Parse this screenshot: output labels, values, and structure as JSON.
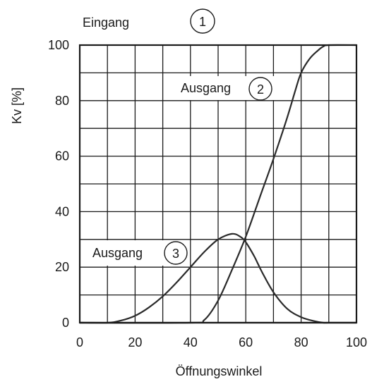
{
  "chart_data": {
    "type": "line",
    "xlabel": "Öffnungswinkel",
    "ylabel": "Kv [%]",
    "xlim": [
      0,
      100
    ],
    "ylim": [
      0,
      100
    ],
    "x_ticks": [
      "0",
      "20",
      "40",
      "60",
      "80",
      "100"
    ],
    "y_ticks": [
      "0",
      "20",
      "40",
      "60",
      "80",
      "100"
    ],
    "grid": true,
    "annotations": [
      {
        "text": "Eingang",
        "marker": "1"
      },
      {
        "text": "Ausgang",
        "marker": "2"
      },
      {
        "text": "Ausgang",
        "marker": "3"
      }
    ],
    "series": [
      {
        "x": [
          0,
          10,
          20,
          30,
          40,
          50,
          55,
          60,
          62,
          65,
          70,
          75,
          80,
          85,
          90,
          100
        ],
        "y": [
          0,
          0,
          0,
          0,
          0,
          0,
          0,
          0,
          0,
          0,
          0,
          0,
          0,
          0,
          0,
          0
        ]
      },
      {
        "x": [
          0,
          40,
          45,
          50,
          55,
          60,
          65,
          70,
          75,
          78,
          80,
          83,
          86,
          88,
          90,
          100
        ],
        "y": [
          0,
          0,
          1,
          8,
          19,
          31,
          45,
          59,
          74,
          84,
          90,
          95,
          98,
          99.5,
          100,
          100
        ]
      },
      {
        "x": [
          0,
          10,
          15,
          20,
          25,
          30,
          35,
          40,
          45,
          50,
          55,
          58,
          60,
          63,
          66,
          70,
          75,
          80,
          85,
          88,
          90,
          100
        ],
        "y": [
          0,
          0,
          0.8,
          2.5,
          5.5,
          9.5,
          14.5,
          20,
          25.5,
          30,
          32,
          31,
          29,
          24,
          18,
          11,
          5,
          2,
          0.5,
          0,
          0,
          0
        ]
      }
    ]
  }
}
